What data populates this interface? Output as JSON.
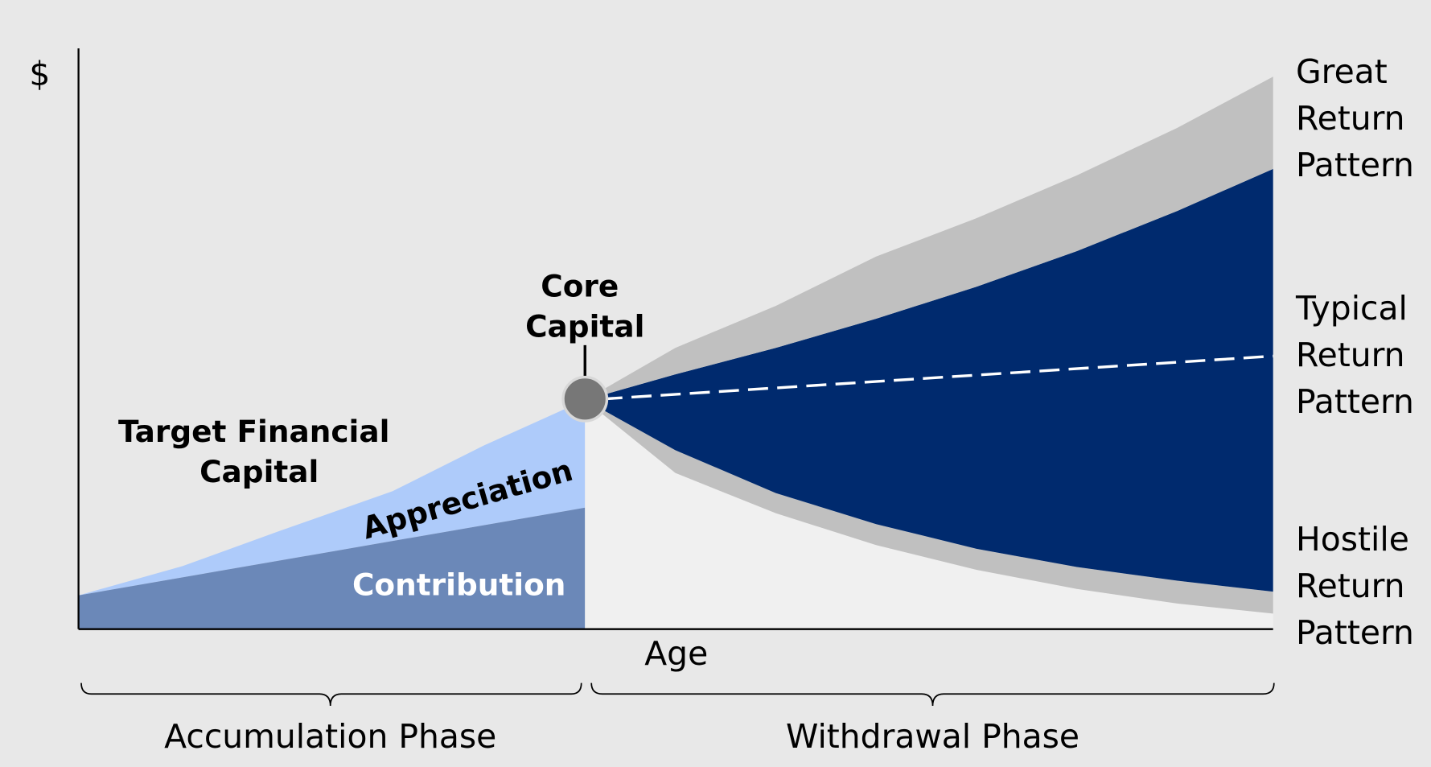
{
  "y_axis_label": "$",
  "x_axis_label": "Age",
  "great_return": [
    "Great",
    "Return",
    "Pattern"
  ],
  "typical_return": [
    "Typical",
    "Return",
    "Pattern"
  ],
  "hostile_return": [
    "Hostile",
    "Return",
    "Pattern"
  ],
  "core_capital": [
    "Core",
    "Capital"
  ],
  "target_capital": [
    "Target Financial",
    "Capital"
  ],
  "appreciation": "Appreciation",
  "contribution": "Contribution",
  "phases": [
    "Accumulation Phase",
    "Withdrawal Phase"
  ]
}
